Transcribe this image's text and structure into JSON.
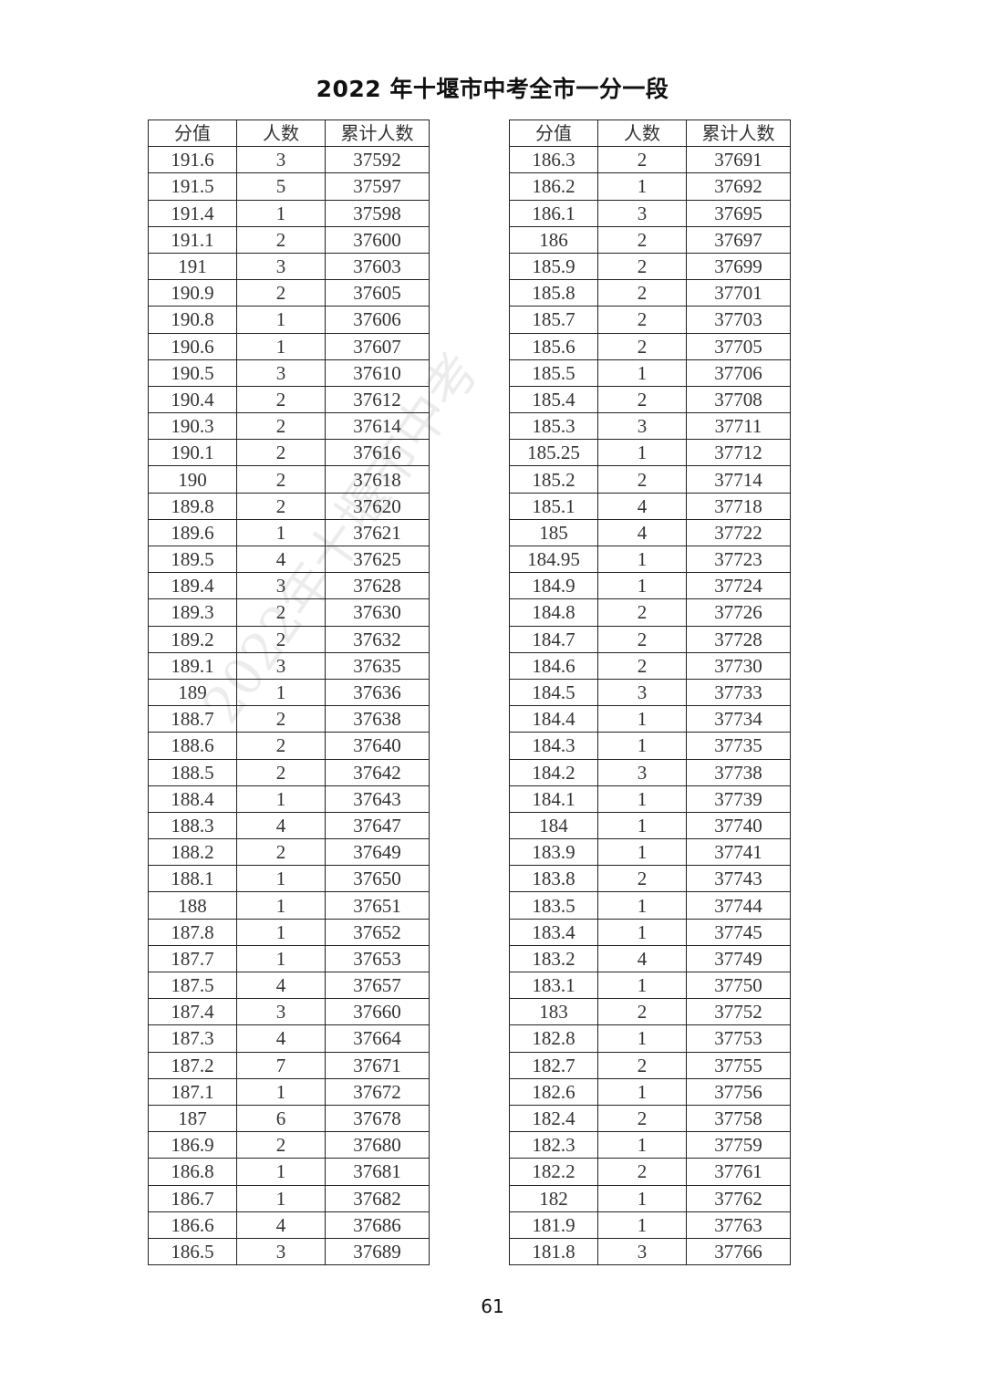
{
  "title": "2022 年十堰市中考全市一分一段",
  "headers": [
    "分值",
    "人数",
    "累计人数"
  ],
  "watermark": "2022年十堰市中考",
  "page_number": "61",
  "left_table": [
    [
      "191.6",
      "3",
      "37592"
    ],
    [
      "191.5",
      "5",
      "37597"
    ],
    [
      "191.4",
      "1",
      "37598"
    ],
    [
      "191.1",
      "2",
      "37600"
    ],
    [
      "191",
      "3",
      "37603"
    ],
    [
      "190.9",
      "2",
      "37605"
    ],
    [
      "190.8",
      "1",
      "37606"
    ],
    [
      "190.6",
      "1",
      "37607"
    ],
    [
      "190.5",
      "3",
      "37610"
    ],
    [
      "190.4",
      "2",
      "37612"
    ],
    [
      "190.3",
      "2",
      "37614"
    ],
    [
      "190.1",
      "2",
      "37616"
    ],
    [
      "190",
      "2",
      "37618"
    ],
    [
      "189.8",
      "2",
      "37620"
    ],
    [
      "189.6",
      "1",
      "37621"
    ],
    [
      "189.5",
      "4",
      "37625"
    ],
    [
      "189.4",
      "3",
      "37628"
    ],
    [
      "189.3",
      "2",
      "37630"
    ],
    [
      "189.2",
      "2",
      "37632"
    ],
    [
      "189.1",
      "3",
      "37635"
    ],
    [
      "189",
      "1",
      "37636"
    ],
    [
      "188.7",
      "2",
      "37638"
    ],
    [
      "188.6",
      "2",
      "37640"
    ],
    [
      "188.5",
      "2",
      "37642"
    ],
    [
      "188.4",
      "1",
      "37643"
    ],
    [
      "188.3",
      "4",
      "37647"
    ],
    [
      "188.2",
      "2",
      "37649"
    ],
    [
      "188.1",
      "1",
      "37650"
    ],
    [
      "188",
      "1",
      "37651"
    ],
    [
      "187.8",
      "1",
      "37652"
    ],
    [
      "187.7",
      "1",
      "37653"
    ],
    [
      "187.5",
      "4",
      "37657"
    ],
    [
      "187.4",
      "3",
      "37660"
    ],
    [
      "187.3",
      "4",
      "37664"
    ],
    [
      "187.2",
      "7",
      "37671"
    ],
    [
      "187.1",
      "1",
      "37672"
    ],
    [
      "187",
      "6",
      "37678"
    ],
    [
      "186.9",
      "2",
      "37680"
    ],
    [
      "186.8",
      "1",
      "37681"
    ],
    [
      "186.7",
      "1",
      "37682"
    ],
    [
      "186.6",
      "4",
      "37686"
    ],
    [
      "186.5",
      "3",
      "37689"
    ]
  ],
  "right_table": [
    [
      "186.3",
      "2",
      "37691"
    ],
    [
      "186.2",
      "1",
      "37692"
    ],
    [
      "186.1",
      "3",
      "37695"
    ],
    [
      "186",
      "2",
      "37697"
    ],
    [
      "185.9",
      "2",
      "37699"
    ],
    [
      "185.8",
      "2",
      "37701"
    ],
    [
      "185.7",
      "2",
      "37703"
    ],
    [
      "185.6",
      "2",
      "37705"
    ],
    [
      "185.5",
      "1",
      "37706"
    ],
    [
      "185.4",
      "2",
      "37708"
    ],
    [
      "185.3",
      "3",
      "37711"
    ],
    [
      "185.25",
      "1",
      "37712"
    ],
    [
      "185.2",
      "2",
      "37714"
    ],
    [
      "185.1",
      "4",
      "37718"
    ],
    [
      "185",
      "4",
      "37722"
    ],
    [
      "184.95",
      "1",
      "37723"
    ],
    [
      "184.9",
      "1",
      "37724"
    ],
    [
      "184.8",
      "2",
      "37726"
    ],
    [
      "184.7",
      "2",
      "37728"
    ],
    [
      "184.6",
      "2",
      "37730"
    ],
    [
      "184.5",
      "3",
      "37733"
    ],
    [
      "184.4",
      "1",
      "37734"
    ],
    [
      "184.3",
      "1",
      "37735"
    ],
    [
      "184.2",
      "3",
      "37738"
    ],
    [
      "184.1",
      "1",
      "37739"
    ],
    [
      "184",
      "1",
      "37740"
    ],
    [
      "183.9",
      "1",
      "37741"
    ],
    [
      "183.8",
      "2",
      "37743"
    ],
    [
      "183.5",
      "1",
      "37744"
    ],
    [
      "183.4",
      "1",
      "37745"
    ],
    [
      "183.2",
      "4",
      "37749"
    ],
    [
      "183.1",
      "1",
      "37750"
    ],
    [
      "183",
      "2",
      "37752"
    ],
    [
      "182.8",
      "1",
      "37753"
    ],
    [
      "182.7",
      "2",
      "37755"
    ],
    [
      "182.6",
      "1",
      "37756"
    ],
    [
      "182.4",
      "2",
      "37758"
    ],
    [
      "182.3",
      "1",
      "37759"
    ],
    [
      "182.2",
      "2",
      "37761"
    ],
    [
      "182",
      "1",
      "37762"
    ],
    [
      "181.9",
      "1",
      "37763"
    ],
    [
      "181.8",
      "3",
      "37766"
    ]
  ]
}
